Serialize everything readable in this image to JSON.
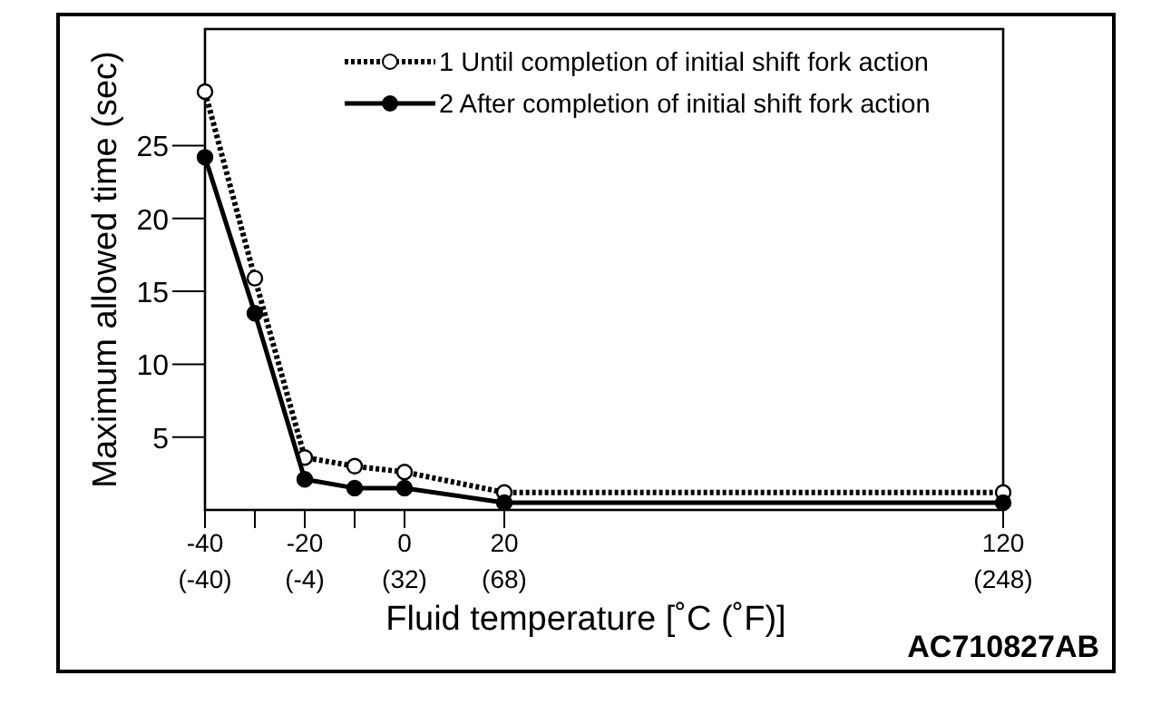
{
  "chart_data": {
    "type": "line",
    "xlabel": "Fluid temperature [˚C (˚F)]",
    "ylabel": "Maximum allowed time (sec)",
    "x": [
      -40,
      -30,
      -20,
      -10,
      0,
      20,
      120
    ],
    "xlim": [
      -40,
      120
    ],
    "xticks": [
      -40,
      {
        "value": -30,
        "label": null
      },
      -20,
      {
        "value": -10,
        "label": null
      },
      0,
      20,
      120
    ],
    "x2lim": [
      -40,
      248
    ],
    "x2ticks": [
      {
        "value": -40,
        "label": "(-40)"
      },
      {
        "value": -4,
        "label": "(-4)"
      },
      {
        "value": 32,
        "label": "(32)"
      },
      {
        "value": 68,
        "label": "(68)"
      },
      {
        "value": 248,
        "label": "(248)"
      }
    ],
    "ylim": [
      0,
      33
    ],
    "yticks": [
      5,
      10,
      15,
      20,
      25
    ],
    "series": [
      {
        "name": "1 Until completion of initial shift fork action",
        "color": "#000000",
        "values": [
          28.7,
          15.9,
          3.6,
          3.0,
          2.6,
          1.2,
          1.2
        ],
        "line_style": "dotted",
        "marker": "circle"
      },
      {
        "name": "2 After completion of initial shift fork action",
        "color": "#000000",
        "values": [
          24.2,
          13.5,
          2.1,
          1.5,
          1.5,
          0.5,
          0.5
        ],
        "line_style": "solid",
        "marker": "circle"
      }
    ],
    "legend": "top right",
    "grid": false,
    "annotations": [
      "AC710827AB"
    ]
  }
}
